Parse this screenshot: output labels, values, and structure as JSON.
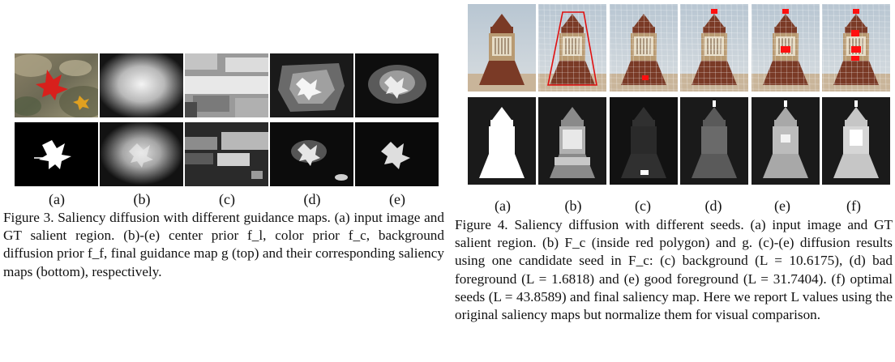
{
  "figure3": {
    "subfig_labels": [
      "(a)",
      "(b)",
      "(c)",
      "(d)",
      "(e)"
    ],
    "caption": "Figure 3. Saliency diffusion with different guidance maps. (a) input image and GT salient region. (b)-(e) center prior f_l, color prior f_c, background diffusion prior f_f, final guidance map g (top) and their corresponding saliency maps (bottom), respectively."
  },
  "figure4": {
    "subfig_labels": [
      "(a)",
      "(b)",
      "(c)",
      "(d)",
      "(e)",
      "(f)"
    ],
    "caption": "Figure 4. Saliency diffusion with different seeds. (a) input image and GT salient region. (b) F_c (inside red polygon) and g. (c)-(e) diffusion results using one candidate seed in F_c: (c) background (L = 10.6175), (d) bad foreground (L = 1.6818) and (e) good foreground (L = 31.7404). (f) optimal seeds (L = 43.8589) and final saliency map. Here we report L values using the original saliency maps but normalize them for visual comparison."
  }
}
